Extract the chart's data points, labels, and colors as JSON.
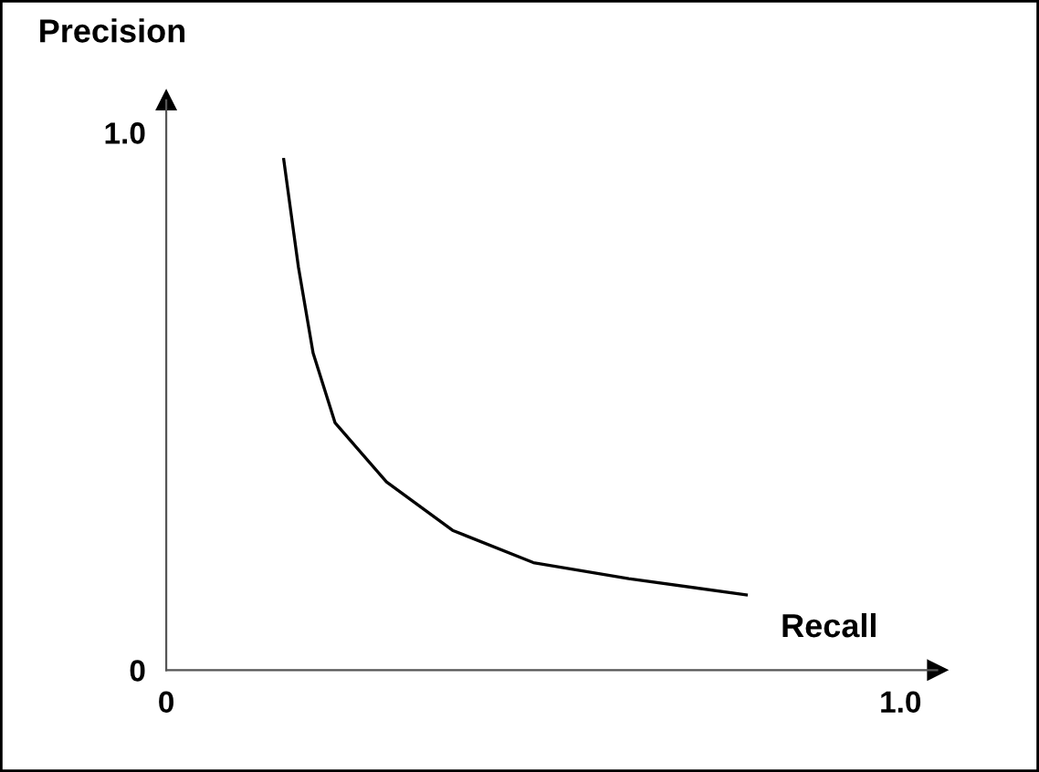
{
  "chart_data": {
    "type": "line",
    "xlabel": "Recall",
    "ylabel": "Precision",
    "x": [
      0.16,
      0.18,
      0.2,
      0.23,
      0.3,
      0.39,
      0.5,
      0.63,
      0.79
    ],
    "series": [
      {
        "color": "#000000",
        "values": [
          0.95,
          0.75,
          0.59,
          0.46,
          0.35,
          0.26,
          0.2,
          0.17,
          0.14
        ]
      }
    ],
    "xlim": [
      0,
      1.05
    ],
    "ylim": [
      0,
      1.06
    ],
    "xticks": [
      {
        "value": 0,
        "label": "0"
      },
      {
        "value": 1,
        "label": "1.0"
      }
    ],
    "yticks": [
      {
        "value": 0,
        "label": "0"
      },
      {
        "value": 1,
        "label": "1.0"
      }
    ],
    "grid": false,
    "legend": false,
    "marker": "none",
    "line_style": "solid"
  }
}
